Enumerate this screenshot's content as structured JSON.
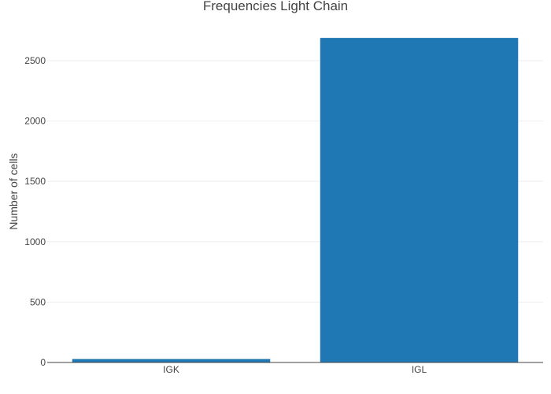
{
  "chart_data": {
    "type": "bar",
    "title": "Frequencies Light Chain",
    "xlabel": "",
    "ylabel": "Number of cells",
    "categories": [
      "IGK",
      "IGL"
    ],
    "values": [
      30,
      2690
    ],
    "ylim": [
      0,
      2800
    ],
    "yticks": [
      0,
      500,
      1000,
      1500,
      2000,
      2500
    ],
    "grid": true,
    "legend": "none",
    "bar_color": "#1f77b4",
    "grid_color": "#eeeeee",
    "axis_color": "#444444"
  }
}
